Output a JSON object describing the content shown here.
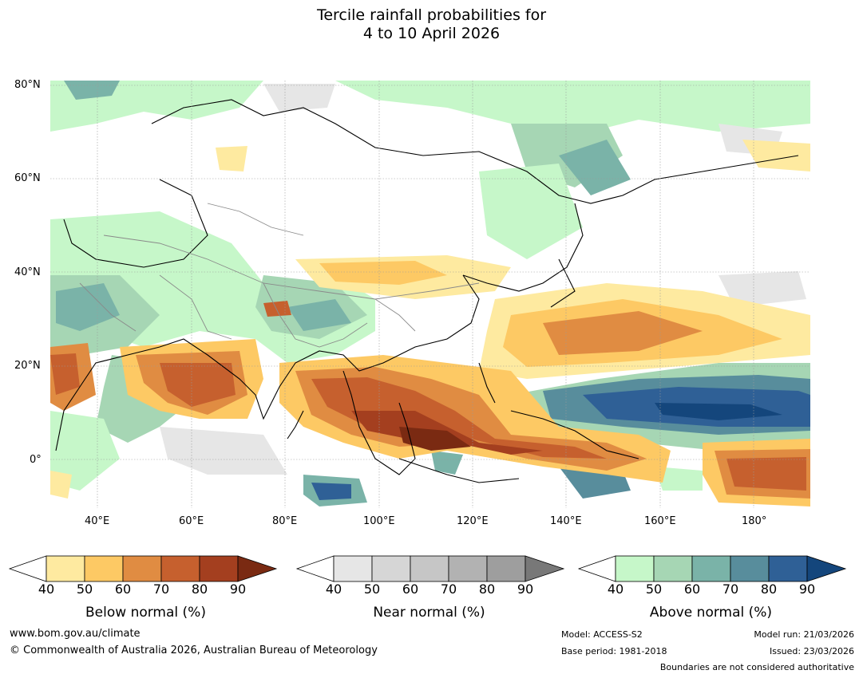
{
  "title": {
    "line1": "Tercile rainfall probabilities for",
    "line2": "4 to 10 April 2026"
  },
  "map": {
    "lat_labels": [
      "80°N",
      "60°N",
      "40°N",
      "20°N",
      "0°"
    ],
    "lon_labels": [
      "40°E",
      "60°E",
      "80°E",
      "100°E",
      "120°E",
      "140°E",
      "160°E",
      "180°"
    ]
  },
  "colorbars": [
    {
      "title": "Below normal (%)",
      "ticks": [
        "40",
        "50",
        "60",
        "70",
        "80",
        "90"
      ],
      "colors": [
        "#ffffff",
        "#feeaa0",
        "#fdc964",
        "#e08c42",
        "#c6602e",
        "#a43f1f",
        "#7a2a12"
      ]
    },
    {
      "title": "Near normal (%)",
      "ticks": [
        "40",
        "50",
        "60",
        "70",
        "80",
        "90"
      ],
      "colors": [
        "#ffffff",
        "#e6e6e6",
        "#d6d6d6",
        "#c6c6c6",
        "#b2b2b2",
        "#9e9e9e",
        "#787878"
      ]
    },
    {
      "title": "Above normal (%)",
      "ticks": [
        "40",
        "50",
        "60",
        "70",
        "80",
        "90"
      ],
      "colors": [
        "#ffffff",
        "#c6f7c9",
        "#a6d6b4",
        "#7ab3a8",
        "#588d9c",
        "#2f6096",
        "#14467c"
      ]
    }
  ],
  "footer": {
    "website": "www.bom.gov.au/climate",
    "copyright": "© Commonwealth of Australia 2026, Australian Bureau of Meteorology",
    "model": "Model: ACCESS-S2",
    "base_period": "Base period: 1981-2018",
    "model_run": "Model run: 21/03/2026",
    "issued": "Issued: 23/03/2026",
    "disclaimer": "Boundaries are not considered authoritative"
  }
}
